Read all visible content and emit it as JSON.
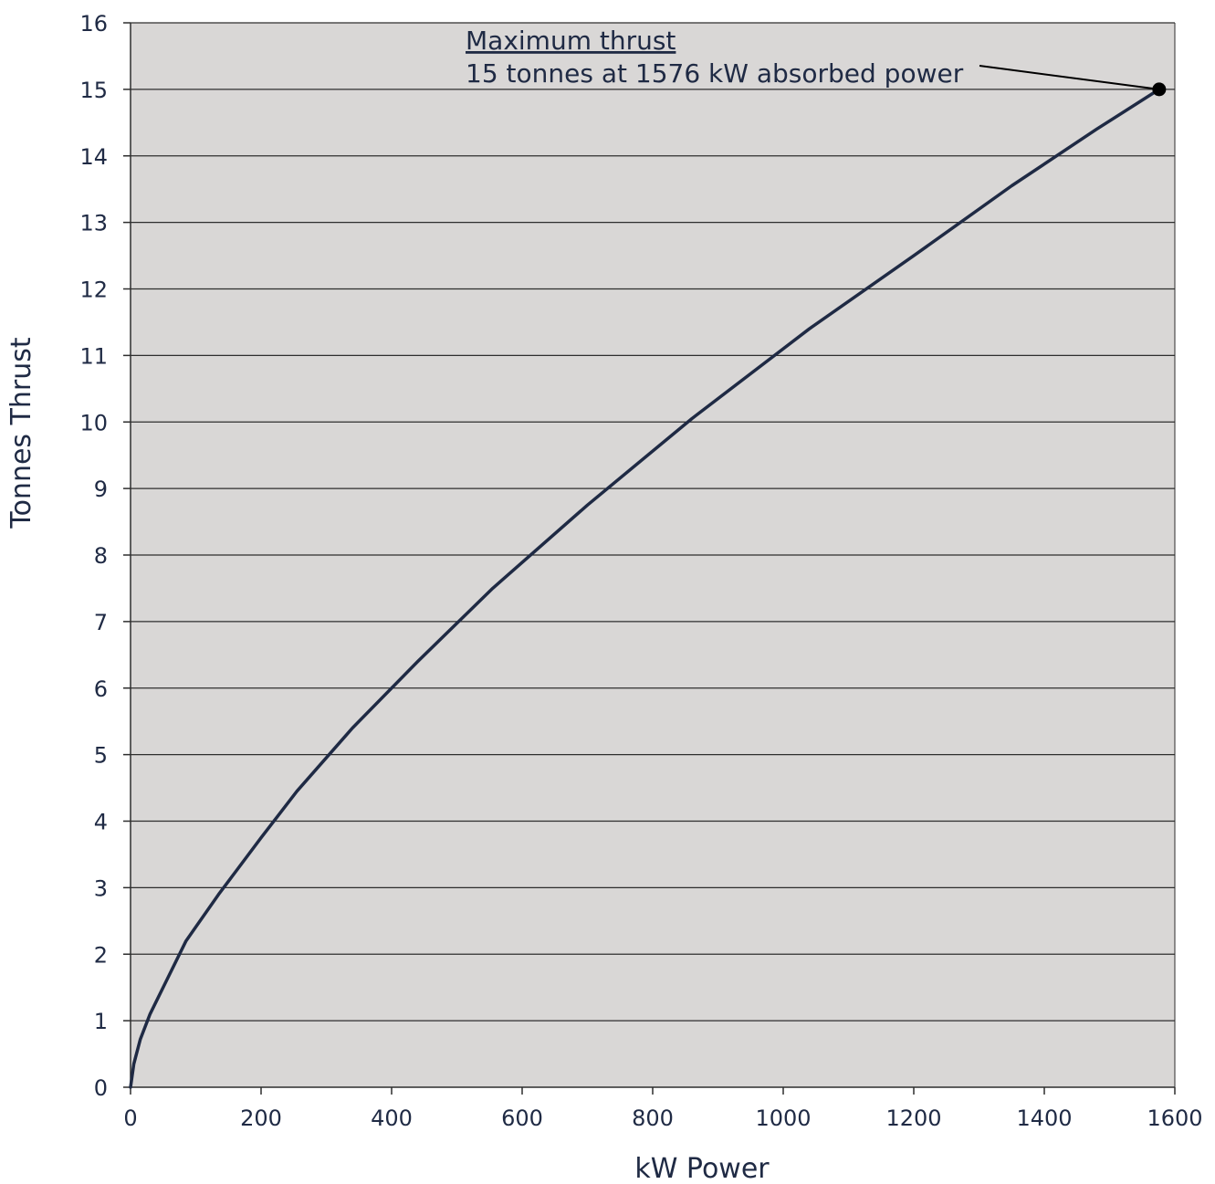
{
  "chart_data": {
    "type": "line",
    "title": "",
    "xlabel": "kW Power",
    "ylabel": "Tonnes Thrust",
    "xlim": [
      0,
      1600
    ],
    "ylim": [
      0,
      16
    ],
    "xticks": [
      0,
      200,
      400,
      600,
      800,
      1000,
      1200,
      1400,
      1600
    ],
    "yticks": [
      0,
      1,
      2,
      3,
      4,
      5,
      6,
      7,
      8,
      9,
      10,
      11,
      12,
      13,
      14,
      15,
      16
    ],
    "grid": "horizontal",
    "legend": "none",
    "series": [
      {
        "x": [
          0,
          5,
          15,
          30,
          55,
          85,
          135,
          200,
          255,
          340,
          440,
          555,
          700,
          860,
          1040,
          1200,
          1350,
          1480,
          1576
        ],
        "y": [
          0,
          0.35,
          0.72,
          1.1,
          1.6,
          2.2,
          2.9,
          3.75,
          4.45,
          5.4,
          6.4,
          7.5,
          8.75,
          10.05,
          11.4,
          12.5,
          13.55,
          14.4,
          15.0
        ]
      }
    ],
    "annotations": [
      {
        "title": "Maximum thrust",
        "text": "15 tonnes at 1576 kW absorbed power",
        "x": 1576,
        "y": 15
      }
    ]
  },
  "colors": {
    "plot_background": "#d9d7d6",
    "line": "#1f2a44",
    "grid": "#2e2e2e",
    "text": "#1f2a44"
  }
}
